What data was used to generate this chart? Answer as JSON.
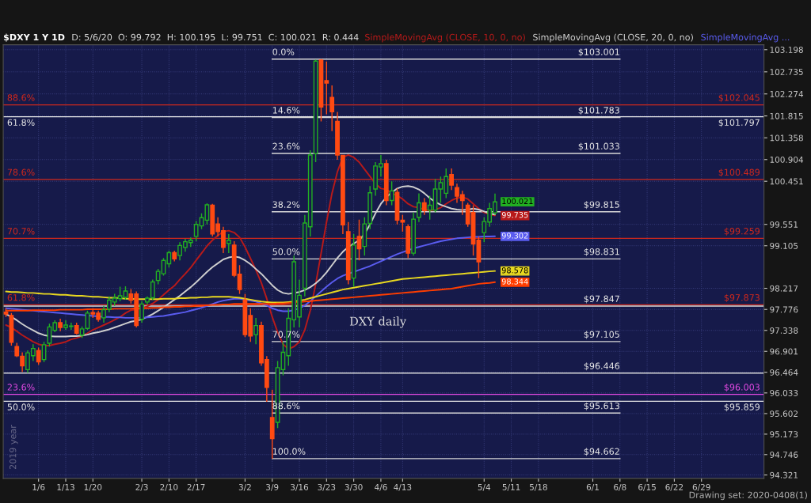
{
  "chart_data": {
    "type": "candlestick",
    "title": "$DXY 1 Y 1D",
    "subtitle": "D: 5/6/20  O: 99.792  H: 100.195  L: 99.751  C: 100.021  R: 0.444",
    "categories": [
      null,
      null,
      null,
      null,
      null,
      null,
      "1/6",
      null,
      null,
      null,
      null,
      "1/13",
      null,
      null,
      null,
      null,
      "1/20",
      null,
      null,
      null,
      null,
      null,
      null,
      null,
      null,
      "2/3",
      null,
      null,
      null,
      null,
      "2/10",
      null,
      null,
      null,
      null,
      "2/17",
      null,
      null,
      null,
      null,
      null,
      null,
      null,
      null,
      "3/2",
      null,
      null,
      null,
      null,
      "3/9",
      null,
      null,
      null,
      null,
      "3/16",
      null,
      null,
      null,
      null,
      "3/23",
      null,
      null,
      null,
      null,
      "3/30",
      null,
      null,
      null,
      null,
      "4/6",
      null,
      null,
      null,
      "4/13",
      null,
      null,
      null,
      null,
      null,
      null,
      null,
      null,
      null,
      null,
      null,
      null,
      null,
      null,
      "5/4",
      null,
      null,
      null,
      null,
      "5/11",
      null,
      null,
      null,
      null,
      "5/18",
      null,
      null,
      null,
      null,
      null,
      null,
      null,
      null,
      null,
      "6/1",
      null,
      null,
      null,
      null,
      "6/8",
      null,
      null,
      null,
      null,
      "6/15",
      null,
      null,
      null,
      null,
      "6/22",
      null,
      null,
      null,
      null,
      "6/29",
      null,
      null,
      null,
      null,
      null,
      null,
      null,
      null,
      null,
      null,
      null
    ],
    "ohlc": [
      [
        97.72,
        97.8,
        97.62,
        97.68
      ],
      [
        97.65,
        97.7,
        97.02,
        97.09
      ],
      [
        97.0,
        97.08,
        96.78,
        96.81
      ],
      [
        96.8,
        96.88,
        96.47,
        96.6
      ],
      [
        96.52,
        96.92,
        96.45,
        96.87
      ],
      [
        96.81,
        97.05,
        96.7,
        96.96
      ],
      [
        96.92,
        96.98,
        96.62,
        96.68
      ],
      [
        96.73,
        97.1,
        96.68,
        97.04
      ],
      [
        97.07,
        97.48,
        97.0,
        97.41
      ],
      [
        97.34,
        97.55,
        97.3,
        97.5
      ],
      [
        97.5,
        97.58,
        97.32,
        97.4
      ],
      [
        97.4,
        97.55,
        97.35,
        97.45
      ],
      [
        97.42,
        97.5,
        97.35,
        97.43
      ],
      [
        97.44,
        97.5,
        97.25,
        97.28
      ],
      [
        97.24,
        97.42,
        97.18,
        97.37
      ],
      [
        97.38,
        97.75,
        97.35,
        97.7
      ],
      [
        97.71,
        97.8,
        97.6,
        97.68
      ],
      [
        97.7,
        97.75,
        97.52,
        97.57
      ],
      [
        97.6,
        97.85,
        97.5,
        97.77
      ],
      [
        97.78,
        98.05,
        97.72,
        97.97
      ],
      [
        97.93,
        98.1,
        97.85,
        98.01
      ],
      [
        98.0,
        98.25,
        97.95,
        98.06
      ],
      [
        98.03,
        98.26,
        97.98,
        98.16
      ],
      [
        98.1,
        98.2,
        97.9,
        97.97
      ],
      [
        98.1,
        98.15,
        97.4,
        97.44
      ],
      [
        97.57,
        97.95,
        97.5,
        97.89
      ],
      [
        97.93,
        98.05,
        97.88,
        98.01
      ],
      [
        98.02,
        98.4,
        97.98,
        98.35
      ],
      [
        98.38,
        98.62,
        98.3,
        98.57
      ],
      [
        98.52,
        98.85,
        98.48,
        98.8
      ],
      [
        98.73,
        99.0,
        98.65,
        98.96
      ],
      [
        98.96,
        99.0,
        98.78,
        98.83
      ],
      [
        98.9,
        99.18,
        98.8,
        99.11
      ],
      [
        99.07,
        99.25,
        98.98,
        99.19
      ],
      [
        99.17,
        99.28,
        99.08,
        99.22
      ],
      [
        99.3,
        99.62,
        99.2,
        99.55
      ],
      [
        99.52,
        99.78,
        99.45,
        99.69
      ],
      [
        99.64,
        99.99,
        99.55,
        99.96
      ],
      [
        99.95,
        99.98,
        99.3,
        99.35
      ],
      [
        99.56,
        99.7,
        99.3,
        99.4
      ],
      [
        99.42,
        99.5,
        98.95,
        99.07
      ],
      [
        99.15,
        99.35,
        98.95,
        99.22
      ],
      [
        99.12,
        99.2,
        98.45,
        98.49
      ],
      [
        98.51,
        98.7,
        98.1,
        98.19
      ],
      [
        97.97,
        98.1,
        97.2,
        97.25
      ],
      [
        97.65,
        97.8,
        97.1,
        97.22
      ],
      [
        97.25,
        97.6,
        97.05,
        97.44
      ],
      [
        97.44,
        97.52,
        96.6,
        96.66
      ],
      [
        96.73,
        96.8,
        95.85,
        96.15
      ],
      [
        95.52,
        96.1,
        94.662,
        95.08
      ],
      [
        95.42,
        96.7,
        95.3,
        96.56
      ],
      [
        96.52,
        97.1,
        96.4,
        96.88
      ],
      [
        96.81,
        97.8,
        96.6,
        97.59
      ],
      [
        97.56,
        98.9,
        97.4,
        98.77
      ],
      [
        97.62,
        98.4,
        97.4,
        98.07
      ],
      [
        98.22,
        99.75,
        98.05,
        99.58
      ],
      [
        99.5,
        101.1,
        99.3,
        101.0
      ],
      [
        101.03,
        102.99,
        100.85,
        102.96
      ],
      [
        102.98,
        103.001,
        101.7,
        102.0
      ],
      [
        102.55,
        102.95,
        101.85,
        102.5
      ],
      [
        102.2,
        102.45,
        101.5,
        101.9
      ],
      [
        101.7,
        101.9,
        100.9,
        101.0
      ],
      [
        100.99,
        101.0,
        99.35,
        99.54
      ],
      [
        99.4,
        99.6,
        98.3,
        98.4
      ],
      [
        98.43,
        99.35,
        98.25,
        99.12
      ],
      [
        99.3,
        99.65,
        98.8,
        99.04
      ],
      [
        99.09,
        99.7,
        98.9,
        99.56
      ],
      [
        99.57,
        100.35,
        99.45,
        100.21
      ],
      [
        100.29,
        100.85,
        100.15,
        100.77
      ],
      [
        100.75,
        101.0,
        100.55,
        100.82
      ],
      [
        100.82,
        100.9,
        99.95,
        100.05
      ],
      [
        100.05,
        100.45,
        99.95,
        100.25
      ],
      [
        100.22,
        100.3,
        99.55,
        99.64
      ],
      [
        99.64,
        99.75,
        99.4,
        99.6
      ],
      [
        99.5,
        99.55,
        98.85,
        98.95
      ],
      [
        98.95,
        99.8,
        98.9,
        99.66
      ],
      [
        99.7,
        100.2,
        99.6,
        100.0
      ],
      [
        100.0,
        100.1,
        99.75,
        99.84
      ],
      [
        99.85,
        100.15,
        99.65,
        99.95
      ],
      [
        99.85,
        100.5,
        99.8,
        100.29
      ],
      [
        100.29,
        100.55,
        100.0,
        100.42
      ],
      [
        100.2,
        100.72,
        100.1,
        100.55
      ],
      [
        100.59,
        100.72,
        100.27,
        100.37
      ],
      [
        100.32,
        100.4,
        100.0,
        100.14
      ],
      [
        100.17,
        100.25,
        99.75,
        100.05
      ],
      [
        99.95,
        100.0,
        99.5,
        99.56
      ],
      [
        99.8,
        99.95,
        98.9,
        99.14
      ],
      [
        99.22,
        99.3,
        98.43,
        98.77
      ],
      [
        99.38,
        99.7,
        99.18,
        99.61
      ],
      [
        99.6,
        100.0,
        99.5,
        99.88
      ],
      [
        99.792,
        100.195,
        99.751,
        100.021
      ],
      null,
      null,
      null,
      null,
      null,
      null,
      null,
      null,
      null,
      null,
      null,
      null,
      null,
      null,
      null,
      null,
      null,
      null,
      null,
      null,
      null,
      null,
      null,
      null,
      null,
      null,
      null,
      null,
      null,
      null,
      null,
      null,
      null,
      null,
      null,
      null,
      null,
      null,
      null,
      null,
      null,
      null,
      null,
      null,
      null,
      null,
      null,
      null,
      null
    ],
    "colors": [
      "#ff4a12",
      "#ff4a12",
      "#ff4a12",
      "#ff4a12",
      "#22b022",
      "#22b022",
      "#ff4a12",
      "#22b022",
      "#22b022",
      "#22b022",
      "#ff4a12",
      "#22b022",
      "#22b022",
      "#ff4a12",
      "#22b022",
      "#22b022",
      "#ff4a12",
      "#ff4a12",
      "#22b022",
      "#22b022",
      "#22b022",
      "#22b022",
      "#22b022",
      "#ff4a12",
      "#ff4a12",
      "#22b022",
      "#22b022",
      "#22b022",
      "#22b022",
      "#22b022",
      "#22b022",
      "#ff4a12",
      "#22b022",
      "#22b022",
      "#22b022",
      "#22b022",
      "#22b022",
      "#22b022",
      "#ff4a12",
      "#ff4a12",
      "#ff4a12",
      "#22b022",
      "#ff4a12",
      "#ff4a12",
      "#ff4a12",
      "#ff4a12",
      "#22b022",
      "#ff4a12",
      "#ff4a12",
      "#ff4a12",
      "#22b022",
      "#22b022",
      "#22b022",
      "#22b022",
      "#22b022",
      "#22b022",
      "#22b022",
      "#22b022",
      "#ff4a12",
      "#ff4a12",
      "#ff4a12",
      "#ff4a12",
      "#ff4a12",
      "#ff4a12",
      "#22b022",
      "#ff4a12",
      "#22b022",
      "#22b022",
      "#22b022",
      "#22b022",
      "#ff4a12",
      "#22b022",
      "#ff4a12",
      "#ff4a12",
      "#ff4a12",
      "#22b022",
      "#22b022",
      "#ff4a12",
      "#22b022",
      "#22b022",
      "#22b022",
      "#22b022",
      "#ff4a12",
      "#ff4a12",
      "#ff4a12",
      "#ff4a12",
      "#ff4a12",
      "#ff4a12",
      "#22b022",
      "#22b022",
      "#22b022",
      null,
      null,
      null,
      null,
      null,
      null,
      null,
      null,
      null,
      null,
      null,
      null,
      null,
      null,
      null,
      null,
      null,
      null,
      null,
      null,
      null,
      null,
      null,
      null,
      null,
      null,
      null,
      null,
      null,
      null,
      null,
      null,
      null,
      null,
      null,
      null,
      null,
      null,
      null,
      null,
      null,
      null,
      null,
      null,
      null,
      null,
      null,
      null,
      null
    ],
    "value_labels": [
      null,
      null,
      null,
      null,
      null,
      null,
      null,
      null,
      null,
      null,
      null,
      null,
      null,
      null,
      null,
      null,
      null,
      null,
      null,
      null,
      null,
      null,
      null,
      null,
      null,
      null,
      null,
      null,
      null,
      null,
      null,
      null,
      null,
      null,
      null,
      null,
      null,
      null,
      null,
      null,
      null,
      null,
      null,
      null,
      null,
      null,
      null,
      null,
      null,
      null,
      null,
      null,
      null,
      null,
      null,
      null,
      null,
      null,
      null,
      null,
      null,
      null,
      null,
      null,
      null,
      null,
      null,
      null,
      null,
      null,
      null,
      null,
      null,
      null,
      null,
      null,
      null,
      null,
      null,
      null,
      null,
      null,
      null,
      null,
      null,
      null,
      null,
      null,
      null,
      null,
      "100.021",
      null,
      null,
      null,
      null,
      null,
      null,
      null,
      null,
      null,
      null,
      null,
      null,
      null,
      null,
      null,
      null,
      null,
      null,
      null,
      null,
      null,
      null,
      null,
      null,
      null,
      null,
      null,
      null,
      null,
      null,
      null,
      null,
      null,
      null,
      null,
      null,
      null,
      null,
      null,
      null,
      null,
      null,
      null,
      null,
      null,
      null,
      null,
      null,
      null
    ],
    "series": [
      {
        "type": "line",
        "name": "SimpleMovingAvg (CLOSE, 10, 0, no)",
        "color": "#b81a1a",
        "values": [
          97.45,
          97.4,
          97.32,
          97.24,
          97.17,
          97.1,
          97.05,
          97.02,
          97.02,
          97.05,
          97.07,
          97.1,
          97.15,
          97.18,
          97.22,
          97.28,
          97.35,
          97.4,
          97.45,
          97.5,
          97.56,
          97.62,
          97.7,
          97.76,
          97.78,
          97.8,
          97.84,
          97.9,
          97.98,
          98.08,
          98.18,
          98.27,
          98.4,
          98.52,
          98.65,
          98.8,
          98.95,
          99.1,
          99.22,
          99.32,
          99.4,
          99.42,
          99.38,
          99.28,
          99.08,
          98.84,
          98.6,
          98.33,
          98.0,
          97.62,
          97.3,
          97.05,
          96.95,
          97.0,
          97.1,
          97.35,
          97.75,
          98.3,
          98.95,
          99.6,
          100.2,
          100.65,
          100.95,
          101.0,
          100.95,
          100.85,
          100.7,
          100.55,
          100.4,
          100.3,
          100.28,
          100.2,
          100.15,
          100.08,
          99.98,
          99.92,
          99.9,
          99.86,
          99.84,
          99.86,
          99.9,
          99.98,
          100.05,
          100.1,
          100.12,
          100.08,
          99.98,
          99.88,
          99.8,
          99.76,
          99.735,
          null,
          null,
          null,
          null,
          null,
          null,
          null,
          null,
          null,
          null,
          null,
          null,
          null,
          null,
          null,
          null,
          null,
          null,
          null,
          null,
          null,
          null,
          null,
          null,
          null,
          null,
          null,
          null,
          null,
          null,
          null,
          null,
          null,
          null,
          null,
          null,
          null,
          null,
          null,
          null,
          null,
          null,
          null,
          null,
          null,
          null,
          null,
          null,
          null
        ],
        "value_labels": [
          null,
          null,
          null,
          null,
          null,
          null,
          null,
          null,
          null,
          null,
          null,
          null,
          null,
          null,
          null,
          null,
          null,
          null,
          null,
          null,
          null,
          null,
          null,
          null,
          null,
          null,
          null,
          null,
          null,
          null,
          null,
          null,
          null,
          null,
          null,
          null,
          null,
          null,
          null,
          null,
          null,
          null,
          null,
          null,
          null,
          null,
          null,
          null,
          null,
          null,
          null,
          null,
          null,
          null,
          null,
          null,
          null,
          null,
          null,
          null,
          null,
          null,
          null,
          null,
          null,
          null,
          null,
          null,
          null,
          null,
          null,
          null,
          null,
          null,
          null,
          null,
          null,
          null,
          null,
          null,
          null,
          null,
          null,
          null,
          null,
          null,
          null,
          null,
          null,
          null,
          "99.735",
          null,
          null,
          null,
          null,
          null,
          null,
          null,
          null,
          null,
          null,
          null,
          null,
          null,
          null,
          null,
          null,
          null,
          null,
          null,
          null,
          null,
          null,
          null,
          null,
          null,
          null,
          null,
          null,
          null,
          null,
          null,
          null,
          null,
          null,
          null,
          null,
          null,
          null,
          null,
          null,
          null,
          null,
          null,
          null,
          null,
          null,
          null,
          null,
          null
        ]
      },
      {
        "type": "line",
        "name": "SimpleMovingAvg (CLOSE, 20, 0, no)",
        "color": "#cfcfcf",
        "values": [
          97.68,
          97.62,
          97.55,
          97.47,
          97.4,
          97.34,
          97.28,
          97.24,
          97.22,
          97.21,
          97.21,
          97.21,
          97.22,
          97.22,
          97.23,
          97.25,
          97.28,
          97.3,
          97.33,
          97.36,
          97.4,
          97.44,
          97.48,
          97.52,
          97.54,
          97.57,
          97.62,
          97.68,
          97.75,
          97.82,
          97.9,
          97.98,
          98.06,
          98.15,
          98.24,
          98.34,
          98.45,
          98.56,
          98.66,
          98.74,
          98.82,
          98.86,
          98.88,
          98.86,
          98.8,
          98.72,
          98.62,
          98.52,
          98.4,
          98.28,
          98.18,
          98.12,
          98.1,
          98.12,
          98.14,
          98.18,
          98.24,
          98.32,
          98.42,
          98.55,
          98.7,
          98.85,
          98.98,
          99.08,
          99.15,
          99.22,
          99.35,
          99.55,
          99.78,
          99.98,
          100.12,
          100.22,
          100.3,
          100.34,
          100.35,
          100.33,
          100.28,
          100.2,
          100.1,
          100.02,
          99.96,
          99.92,
          99.88,
          99.86,
          99.85,
          99.86,
          99.88,
          99.86,
          99.82,
          99.78,
          99.757,
          null,
          null,
          null,
          null,
          null,
          null,
          null,
          null,
          null,
          null,
          null,
          null,
          null,
          null,
          null,
          null,
          null,
          null,
          null,
          null,
          null,
          null,
          null,
          null,
          null,
          null,
          null,
          null,
          null,
          null,
          null,
          null,
          null,
          null,
          null,
          null,
          null,
          null,
          null,
          null,
          null,
          null,
          null,
          null,
          null,
          null,
          null,
          null,
          null
        ]
      },
      {
        "type": "line",
        "name": "SimpleMovingAvg ...",
        "color": "#5a5cf0",
        "values": [
          97.8,
          97.79,
          97.78,
          97.77,
          97.76,
          97.75,
          97.74,
          97.73,
          97.72,
          97.71,
          97.7,
          97.69,
          97.68,
          97.67,
          97.66,
          97.65,
          97.64,
          97.63,
          97.62,
          97.62,
          97.61,
          97.61,
          97.6,
          97.6,
          97.6,
          97.6,
          97.61,
          97.62,
          97.63,
          97.64,
          97.66,
          97.68,
          97.7,
          97.72,
          97.75,
          97.78,
          97.81,
          97.85,
          97.89,
          97.93,
          97.96,
          97.98,
          98.0,
          98.0,
          97.98,
          97.96,
          97.94,
          97.9,
          97.86,
          97.8,
          97.76,
          97.74,
          97.74,
          97.76,
          97.8,
          97.86,
          97.95,
          98.05,
          98.15,
          98.25,
          98.34,
          98.42,
          98.48,
          98.52,
          98.56,
          98.6,
          98.64,
          98.68,
          98.73,
          98.78,
          98.83,
          98.88,
          98.93,
          98.97,
          99.01,
          99.05,
          99.08,
          99.11,
          99.14,
          99.17,
          99.2,
          99.22,
          99.24,
          99.26,
          99.27,
          99.28,
          99.29,
          99.29,
          99.3,
          99.3,
          99.302,
          null,
          null,
          null,
          null,
          null,
          null,
          null,
          null,
          null,
          null,
          null,
          null,
          null,
          null,
          null,
          null,
          null,
          null,
          null,
          null,
          null,
          null,
          null,
          null,
          null,
          null,
          null,
          null,
          null,
          null,
          null,
          null,
          null,
          null,
          null,
          null,
          null,
          null,
          null,
          null,
          null,
          null,
          null,
          null,
          null,
          null,
          null,
          null,
          null
        ],
        "value_labels": [
          null,
          null,
          null,
          null,
          null,
          null,
          null,
          null,
          null,
          null,
          null,
          null,
          null,
          null,
          null,
          null,
          null,
          null,
          null,
          null,
          null,
          null,
          null,
          null,
          null,
          null,
          null,
          null,
          null,
          null,
          null,
          null,
          null,
          null,
          null,
          null,
          null,
          null,
          null,
          null,
          null,
          null,
          null,
          null,
          null,
          null,
          null,
          null,
          null,
          null,
          null,
          null,
          null,
          null,
          null,
          null,
          null,
          null,
          null,
          null,
          null,
          null,
          null,
          null,
          null,
          null,
          null,
          null,
          null,
          null,
          null,
          null,
          null,
          null,
          null,
          null,
          null,
          null,
          null,
          null,
          null,
          null,
          null,
          null,
          null,
          null,
          null,
          null,
          null,
          null,
          "99.302",
          null,
          null,
          null,
          null,
          null,
          null,
          null,
          null,
          null,
          null,
          null,
          null,
          null,
          null,
          null,
          null,
          null,
          null,
          null,
          null,
          null,
          null,
          null,
          null,
          null,
          null,
          null,
          null,
          null,
          null,
          null,
          null,
          null,
          null,
          null,
          null,
          null,
          null,
          null,
          null,
          null,
          null,
          null,
          null,
          null,
          null,
          null,
          null,
          null
        ]
      },
      {
        "type": "line",
        "color": "#e8d820",
        "values": [
          98.15,
          98.14,
          98.14,
          98.13,
          98.12,
          98.12,
          98.11,
          98.1,
          98.1,
          98.09,
          98.08,
          98.08,
          98.07,
          98.06,
          98.06,
          98.05,
          98.04,
          98.04,
          98.03,
          98.02,
          98.02,
          98.01,
          98.0,
          98.0,
          97.99,
          97.99,
          97.99,
          97.99,
          97.99,
          98.0,
          98.0,
          98.0,
          98.01,
          98.01,
          98.02,
          98.02,
          98.03,
          98.03,
          98.04,
          98.04,
          98.04,
          98.04,
          98.03,
          98.02,
          98.0,
          97.98,
          97.96,
          97.94,
          97.93,
          97.92,
          97.92,
          97.92,
          97.93,
          97.94,
          97.96,
          97.98,
          98.01,
          98.04,
          98.07,
          98.1,
          98.13,
          98.16,
          98.19,
          98.21,
          98.23,
          98.25,
          98.27,
          98.29,
          98.31,
          98.33,
          98.35,
          98.37,
          98.39,
          98.41,
          98.42,
          98.43,
          98.44,
          98.45,
          98.46,
          98.47,
          98.48,
          98.49,
          98.5,
          98.51,
          98.52,
          98.53,
          98.54,
          98.55,
          98.56,
          98.57,
          98.578,
          null,
          null,
          null,
          null,
          null,
          null,
          null,
          null,
          null,
          null,
          null,
          null,
          null,
          null,
          null,
          null,
          null,
          null,
          null,
          null,
          null,
          null,
          null,
          null,
          null,
          null,
          null,
          null,
          null,
          null,
          null,
          null,
          null,
          null,
          null,
          null,
          null,
          null,
          null,
          null,
          null,
          null,
          null,
          null,
          null,
          null,
          null,
          null,
          null
        ],
        "value_labels": [
          null,
          null,
          null,
          null,
          null,
          null,
          null,
          null,
          null,
          null,
          null,
          null,
          null,
          null,
          null,
          null,
          null,
          null,
          null,
          null,
          null,
          null,
          null,
          null,
          null,
          null,
          null,
          null,
          null,
          null,
          null,
          null,
          null,
          null,
          null,
          null,
          null,
          null,
          null,
          null,
          null,
          null,
          null,
          null,
          null,
          null,
          null,
          null,
          null,
          null,
          null,
          null,
          null,
          null,
          null,
          null,
          null,
          null,
          null,
          null,
          null,
          null,
          null,
          null,
          null,
          null,
          null,
          null,
          null,
          null,
          null,
          null,
          null,
          null,
          null,
          null,
          null,
          null,
          null,
          null,
          null,
          null,
          null,
          null,
          null,
          null,
          null,
          null,
          null,
          null,
          "98.578",
          null,
          null,
          null,
          null,
          null,
          null,
          null,
          null,
          null,
          null,
          null,
          null,
          null,
          null,
          null,
          null,
          null,
          null,
          null,
          null,
          null,
          null,
          null,
          null,
          null,
          null,
          null,
          null,
          null,
          null,
          null,
          null,
          null,
          null,
          null,
          null,
          null,
          null,
          null,
          null,
          null,
          null,
          null,
          null,
          null,
          null,
          null,
          null,
          null
        ]
      },
      {
        "type": "line",
        "color": "#ff3d00",
        "values": [
          97.75,
          97.75,
          97.75,
          97.75,
          97.75,
          97.76,
          97.76,
          97.76,
          97.76,
          97.76,
          97.77,
          97.77,
          97.77,
          97.77,
          97.77,
          97.78,
          97.78,
          97.78,
          97.78,
          97.78,
          97.79,
          97.79,
          97.79,
          97.79,
          97.8,
          97.8,
          97.8,
          97.81,
          97.81,
          97.82,
          97.82,
          97.83,
          97.83,
          97.84,
          97.84,
          97.85,
          97.85,
          97.86,
          97.87,
          97.87,
          97.88,
          97.88,
          97.89,
          97.89,
          97.89,
          97.89,
          97.89,
          97.89,
          97.89,
          97.89,
          97.9,
          97.9,
          97.91,
          97.92,
          97.93,
          97.94,
          97.95,
          97.96,
          97.97,
          97.98,
          97.99,
          98.0,
          98.01,
          98.02,
          98.03,
          98.04,
          98.05,
          98.06,
          98.07,
          98.08,
          98.09,
          98.1,
          98.11,
          98.12,
          98.13,
          98.14,
          98.15,
          98.16,
          98.17,
          98.18,
          98.19,
          98.2,
          98.21,
          98.23,
          98.25,
          98.27,
          98.29,
          98.31,
          98.32,
          98.33,
          98.344,
          null,
          null,
          null,
          null,
          null,
          null,
          null,
          null,
          null,
          null,
          null,
          null,
          null,
          null,
          null,
          null,
          null,
          null,
          null,
          null,
          null,
          null,
          null,
          null,
          null,
          null,
          null,
          null,
          null,
          null,
          null,
          null,
          null,
          null,
          null,
          null,
          null,
          null,
          null,
          null,
          null,
          null,
          null,
          null,
          null,
          null,
          null,
          null,
          null
        ],
        "value_labels": [
          null,
          null,
          null,
          null,
          null,
          null,
          null,
          null,
          null,
          null,
          null,
          null,
          null,
          null,
          null,
          null,
          null,
          null,
          null,
          null,
          null,
          null,
          null,
          null,
          null,
          null,
          null,
          null,
          null,
          null,
          null,
          null,
          null,
          null,
          null,
          null,
          null,
          null,
          null,
          null,
          null,
          null,
          null,
          null,
          null,
          null,
          null,
          null,
          null,
          null,
          null,
          null,
          null,
          null,
          null,
          null,
          null,
          null,
          null,
          null,
          null,
          null,
          null,
          null,
          null,
          null,
          null,
          null,
          null,
          null,
          null,
          null,
          null,
          null,
          null,
          null,
          null,
          null,
          null,
          null,
          null,
          null,
          null,
          null,
          null,
          null,
          null,
          null,
          null,
          null,
          "98.344",
          null,
          null,
          null,
          null,
          null,
          null,
          null,
          null,
          null,
          null,
          null,
          null,
          null,
          null,
          null,
          null,
          null,
          null,
          null,
          null,
          null,
          null,
          null,
          null,
          null,
          null,
          null,
          null,
          null,
          null,
          null,
          null,
          null,
          null,
          null,
          null,
          null,
          null,
          null,
          null,
          null,
          null,
          null,
          null,
          null,
          null,
          null,
          null,
          null
        ]
      }
    ],
    "ylim": [
      94.25,
      103.3
    ],
    "yticks": [
      94.321,
      94.746,
      95.173,
      95.602,
      96.033,
      96.464,
      96.901,
      97.338,
      97.776,
      98.217,
      99.105,
      99.551,
      100.451,
      100.904,
      101.358,
      101.815,
      102.274,
      102.735,
      103.198
    ],
    "ref_lines": [
      {
        "axis": "y",
        "value": 103.001,
        "label": null,
        "color": "#d8d8d8"
      },
      {
        "axis": "y",
        "value": 102.045,
        "label": "$102.045",
        "color": "#d0281c"
      },
      {
        "axis": "y",
        "value": 101.797,
        "label": "$101.797",
        "color": "#e6e6e6"
      },
      {
        "axis": "y",
        "value": 101.783,
        "label": null,
        "color": "#d8d8d8"
      },
      {
        "axis": "y",
        "value": 101.033,
        "label": null,
        "color": "#d8d8d8"
      },
      {
        "axis": "y",
        "value": 100.489,
        "label": "$100.489",
        "color": "#d0281c"
      },
      {
        "axis": "y",
        "value": 99.815,
        "label": null,
        "color": "#d8d8d8"
      },
      {
        "axis": "y",
        "value": 99.259,
        "label": "$99.259",
        "color": "#d0281c"
      },
      {
        "axis": "y",
        "value": 98.831,
        "label": null,
        "color": "#d8d8d8"
      },
      {
        "axis": "y",
        "value": 97.873,
        "label": "$97.873",
        "color": "#d0281c"
      },
      {
        "axis": "y",
        "value": 97.847,
        "label": null,
        "color": "#d8d8d8"
      },
      {
        "axis": "y",
        "value": 97.105,
        "label": null,
        "color": "#d8d8d8"
      },
      {
        "axis": "y",
        "value": 96.446,
        "label": null,
        "color": "#d8d8d8"
      },
      {
        "axis": "y",
        "value": 96.003,
        "label": "$96.003",
        "color": "#e44ae4"
      },
      {
        "axis": "y",
        "value": 95.859,
        "label": "$95.859",
        "color": "#e6e6e6"
      },
      {
        "axis": "y",
        "value": 95.613,
        "label": null,
        "color": "#d8d8d8"
      },
      {
        "axis": "y",
        "value": 94.662,
        "label": null,
        "color": "#d8d8d8"
      }
    ],
    "annotations": [
      {
        "text": "0.0%",
        "x": "3/9",
        "y": 103.001
      },
      {
        "text": "14.6%",
        "x": "3/9",
        "y": 101.783
      },
      {
        "text": "23.6%",
        "x": "3/9",
        "y": 101.033
      },
      {
        "text": "38.2%",
        "x": "3/9",
        "y": 99.815
      },
      {
        "text": "50.0%",
        "x": "3/9",
        "y": 98.831
      },
      {
        "text": "70.7%",
        "x": "3/9",
        "y": 97.105
      },
      {
        "text": "88.6%",
        "x": "3/9",
        "y": 95.613
      },
      {
        "text": "100.0%",
        "x": "3/9",
        "y": 94.662
      },
      {
        "text": "$103.001",
        "x": "6/8",
        "y": 103.001
      },
      {
        "text": "$101.783",
        "x": "6/8",
        "y": 101.783
      },
      {
        "text": "$101.033",
        "x": "6/8",
        "y": 101.033
      },
      {
        "text": "$99.815",
        "x": "6/8",
        "y": 99.815
      },
      {
        "text": "$98.831",
        "x": "6/8",
        "y": 98.831
      },
      {
        "text": "$97.847",
        "x": "6/8",
        "y": 97.847
      },
      {
        "text": "$97.105",
        "x": "6/8",
        "y": 97.105
      },
      {
        "text": "$96.446",
        "x": "6/8",
        "y": 96.446
      },
      {
        "text": "$95.613",
        "x": "6/8",
        "y": 95.613
      },
      {
        "text": "$94.662",
        "x": "6/8",
        "y": 94.662
      },
      {
        "text": "88.6%",
        "y": 102.045
      },
      {
        "text": "61.8%",
        "y": 101.797
      },
      {
        "text": "78.6%",
        "y": 100.489
      },
      {
        "text": "70.7%",
        "y": 99.259
      },
      {
        "text": "61.8%",
        "y": 97.873
      },
      {
        "text": "23.6%",
        "y": 96.003
      },
      {
        "text": "50.0%",
        "y": 95.859
      },
      "DXY daily",
      "2019 year",
      "Drawing set: 2020-0408(1)"
    ],
    "grid": true,
    "legend": "top"
  }
}
